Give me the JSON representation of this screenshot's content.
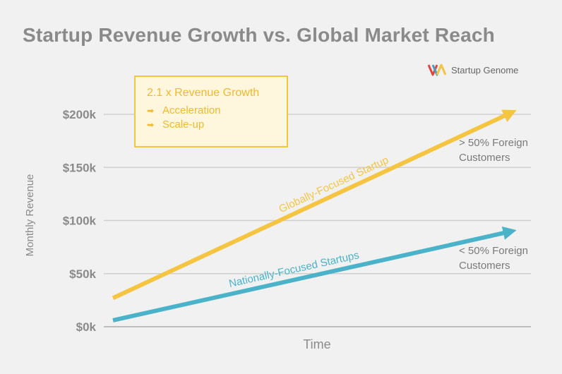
{
  "title": "Startup Revenue Growth vs. Global Market Reach",
  "brand": {
    "name": "Startup Genome",
    "icon": "startup-genome-logo-icon",
    "colors": [
      "#e0473f",
      "#4a9ec6",
      "#f5c542"
    ]
  },
  "callout": {
    "headline": "2.1 x Revenue Growth",
    "items": [
      {
        "arrow": "➡",
        "label": "Acceleration"
      },
      {
        "arrow": "➡",
        "label": "Scale-up"
      }
    ]
  },
  "chart_data": {
    "type": "line",
    "title": "Startup Revenue Growth vs. Global Market Reach",
    "xlabel": "Time",
    "ylabel": "Monthly Revenue",
    "yticks": [
      {
        "value": 0,
        "label": "$0k"
      },
      {
        "value": 50,
        "label": "$50k"
      },
      {
        "value": 100,
        "label": "$100k"
      },
      {
        "value": 150,
        "label": "$150k"
      },
      {
        "value": 200,
        "label": "$200k"
      }
    ],
    "ylim": [
      0,
      200
    ],
    "grid": true,
    "series": [
      {
        "name": "Globally-Focused Startup",
        "color": "#f5c542",
        "x": [
          0,
          1
        ],
        "values": [
          27,
          204
        ],
        "annotation": [
          "> 50% Foreign",
          "Customers"
        ]
      },
      {
        "name": "Nationally-Focused Startups",
        "color": "#4ab3c9",
        "x": [
          0,
          1
        ],
        "values": [
          6,
          91
        ],
        "annotation": [
          "< 50% Foreign",
          "Customers"
        ]
      }
    ]
  }
}
